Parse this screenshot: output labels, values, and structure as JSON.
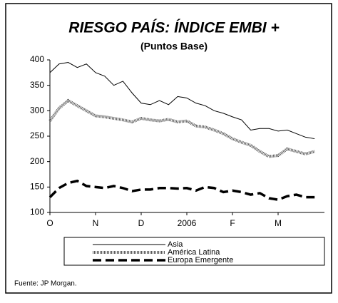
{
  "chart_data": {
    "type": "line",
    "title": "RIESGO PAÍS: ÍNDICE EMBI +",
    "subtitle": "(Puntos Base)",
    "x": [
      0,
      0.2,
      0.4,
      0.6,
      0.8,
      1.0,
      1.2,
      1.4,
      1.6,
      1.8,
      2.0,
      2.2,
      2.4,
      2.6,
      2.8,
      3.0,
      3.2,
      3.4,
      3.6,
      3.8,
      4.0,
      4.2,
      4.4,
      4.6,
      4.8,
      5.0,
      5.2,
      5.4,
      5.6,
      5.8
    ],
    "series": [
      {
        "name": "Asia",
        "color": "#000000",
        "values": [
          375,
          392,
          395,
          385,
          392,
          375,
          368,
          350,
          358,
          335,
          315,
          312,
          320,
          312,
          328,
          325,
          315,
          310,
          300,
          295,
          288,
          282,
          262,
          265,
          265,
          260,
          262,
          255,
          248,
          245
        ]
      },
      {
        "name": "América Latina",
        "color": "#555555",
        "values": [
          280,
          305,
          320,
          310,
          300,
          290,
          288,
          285,
          282,
          278,
          285,
          282,
          280,
          283,
          278,
          280,
          270,
          268,
          262,
          255,
          245,
          238,
          232,
          220,
          210,
          212,
          225,
          220,
          215,
          220
        ]
      },
      {
        "name": "Europa Emergente",
        "color": "#000000",
        "values": [
          130,
          148,
          158,
          162,
          152,
          150,
          148,
          152,
          148,
          142,
          145,
          145,
          148,
          148,
          147,
          148,
          143,
          150,
          148,
          140,
          143,
          140,
          135,
          138,
          128,
          125,
          132,
          135,
          130,
          130
        ]
      }
    ],
    "xlim": [
      0,
      6
    ],
    "xticks": [
      {
        "value": 0,
        "label": "O"
      },
      {
        "value": 1,
        "label": "N"
      },
      {
        "value": 2,
        "label": "D"
      },
      {
        "value": 3,
        "label": "2006"
      },
      {
        "value": 4,
        "label": "F"
      },
      {
        "value": 5,
        "label": "M"
      }
    ],
    "ylim": [
      100,
      400
    ],
    "yticks": [
      100,
      150,
      200,
      250,
      300,
      350,
      400
    ],
    "grid": false,
    "source": "Fuente: JP Morgan."
  }
}
